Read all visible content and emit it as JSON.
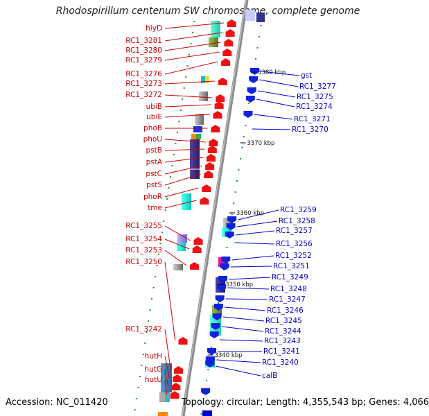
{
  "title": "Rhodospirillum centenum SW chromosome, complete genome",
  "footer": {
    "accession": "Accession: NC_011420",
    "summary": "Topology: circular; Length: 4,355,543 bp; Genes: 4,066"
  },
  "colors": {
    "forward_strand_label": "#cc0000",
    "reverse_strand_label": "#0000cc",
    "forward_gene": "#ee1111",
    "reverse_gene": "#1122dd",
    "backbone": "#888888",
    "tick": "#119911"
  },
  "position_ticks": [
    "3380 kbp",
    "3370 kbp",
    "3360 kbp",
    "3350 kbp",
    "3340 kbp"
  ],
  "forward_labels": [
    "hlyD",
    "RC1_3281",
    "RC1_3280",
    "RC1_3279",
    "RC1_3276",
    "RC1_3273",
    "RC1_3272",
    "ubiB",
    "ubiE",
    "phoB",
    "phoU",
    "pstB",
    "pstA",
    "pstC",
    "pstS",
    "phoR",
    "tme",
    "RC1_3255",
    "RC1_3254",
    "RC1_3253",
    "RC1_3250",
    "RC1_3242",
    "hutH",
    "hutG",
    "hutU"
  ],
  "reverse_labels": [
    "gst",
    "RC1_3277",
    "RC1_3275",
    "RC1_3274",
    "RC1_3271",
    "RC1_3270",
    "RC1_3259",
    "RC1_3258",
    "RC1_3257",
    "RC1_3256",
    "RC1_3252",
    "RC1_3251",
    "RC1_3249",
    "RC1_3248",
    "RC1_3247",
    "RC1_3246",
    "RC1_3245",
    "RC1_3244",
    "RC1_3243",
    "RC1_3241",
    "RC1_3240",
    "calB"
  ]
}
